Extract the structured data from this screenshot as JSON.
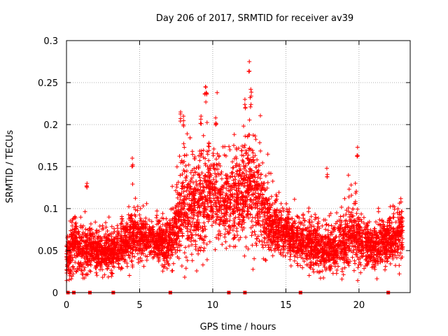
{
  "chart_data": {
    "type": "scatter",
    "title": "Day 206 of 2017, SRMTID for receiver av39",
    "xlabel": "GPS time / hours",
    "ylabel": "SRMTID / TECUs",
    "xlim": [
      0,
      23.5
    ],
    "ylim": [
      0,
      0.3
    ],
    "xticks": [
      0,
      5,
      10,
      15,
      20
    ],
    "yticks": [
      0,
      0.05,
      0.1,
      0.15,
      0.2,
      0.25,
      0.3
    ],
    "xtick_labels": [
      "0",
      "5",
      "10",
      "15",
      "20"
    ],
    "ytick_labels": [
      "0",
      "0.05",
      "0.1",
      "0.15",
      "0.2",
      "0.25",
      "0.3"
    ],
    "grid": true,
    "marker": "+",
    "color": "#ff0000",
    "zero_markers_x": [
      0.1,
      0.5,
      1.6,
      3.2,
      7.1,
      11.1,
      12.2,
      16.0,
      22.0
    ],
    "envelope": {
      "x": [
        0.0,
        0.5,
        1.0,
        2.0,
        3.0,
        4.0,
        4.5,
        5.0,
        6.0,
        7.0,
        7.5,
        8.0,
        9.0,
        9.5,
        10.0,
        11.0,
        11.5,
        12.0,
        12.5,
        13.0,
        14.0,
        15.0,
        16.0,
        17.0,
        18.0,
        19.0,
        19.5,
        20.0,
        21.0,
        22.0,
        23.0
      ],
      "center": [
        0.045,
        0.055,
        0.05,
        0.05,
        0.045,
        0.06,
        0.065,
        0.065,
        0.06,
        0.06,
        0.08,
        0.1,
        0.105,
        0.11,
        0.12,
        0.105,
        0.11,
        0.12,
        0.13,
        0.11,
        0.08,
        0.07,
        0.06,
        0.055,
        0.05,
        0.06,
        0.07,
        0.065,
        0.055,
        0.06,
        0.07
      ],
      "spread": [
        0.03,
        0.04,
        0.03,
        0.025,
        0.025,
        0.035,
        0.04,
        0.03,
        0.025,
        0.03,
        0.05,
        0.06,
        0.065,
        0.07,
        0.06,
        0.05,
        0.06,
        0.065,
        0.07,
        0.06,
        0.035,
        0.03,
        0.03,
        0.03,
        0.03,
        0.035,
        0.045,
        0.035,
        0.03,
        0.03,
        0.035
      ]
    },
    "points_per_hour": 210,
    "peaks": [
      {
        "x": 12.5,
        "y": 0.275
      },
      {
        "x": 12.6,
        "y": 0.242
      },
      {
        "x": 9.5,
        "y": 0.245
      },
      {
        "x": 9.55,
        "y": 0.238
      },
      {
        "x": 12.2,
        "y": 0.23
      },
      {
        "x": 7.8,
        "y": 0.215
      },
      {
        "x": 8.0,
        "y": 0.21
      },
      {
        "x": 9.2,
        "y": 0.21
      },
      {
        "x": 10.2,
        "y": 0.208
      },
      {
        "x": 19.9,
        "y": 0.173
      },
      {
        "x": 4.5,
        "y": 0.16
      },
      {
        "x": 17.8,
        "y": 0.148
      },
      {
        "x": 1.4,
        "y": 0.13
      }
    ]
  }
}
